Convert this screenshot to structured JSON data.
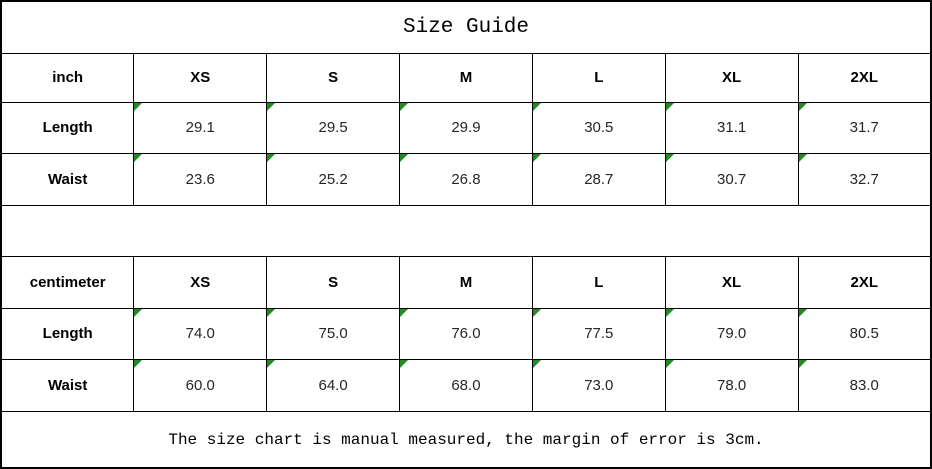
{
  "chart_data": {
    "type": "table",
    "title": "Size Guide",
    "footer_note": "The size chart is manual measured, the margin of error is 3cm.",
    "columns": [
      "XS",
      "S",
      "M",
      "L",
      "XL",
      "2XL"
    ],
    "sections": [
      {
        "unit": "inch",
        "rows": [
          {
            "label": "Length",
            "values": [
              "29.1",
              "29.5",
              "29.9",
              "30.5",
              "31.1",
              "31.7"
            ]
          },
          {
            "label": "Waist",
            "values": [
              "23.6",
              "25.2",
              "26.8",
              "28.7",
              "30.7",
              "32.7"
            ]
          }
        ]
      },
      {
        "unit": "centimeter",
        "rows": [
          {
            "label": "Length",
            "values": [
              "74.0",
              "75.0",
              "76.0",
              "77.5",
              "79.0",
              "80.5"
            ]
          },
          {
            "label": "Waist",
            "values": [
              "60.0",
              "64.0",
              "68.0",
              "73.0",
              "78.0",
              "83.0"
            ]
          }
        ]
      }
    ],
    "layout": {
      "grid": "on",
      "column_count": 7,
      "equal_column_widths": true
    }
  },
  "colors": {
    "border": "#000000",
    "background": "#ffffff",
    "header_text": "#000000",
    "value_text": "#262626",
    "comment_indicator_green": "#1e8c1e"
  },
  "icons": {
    "comment_indicator": "green-corner-triangle"
  }
}
